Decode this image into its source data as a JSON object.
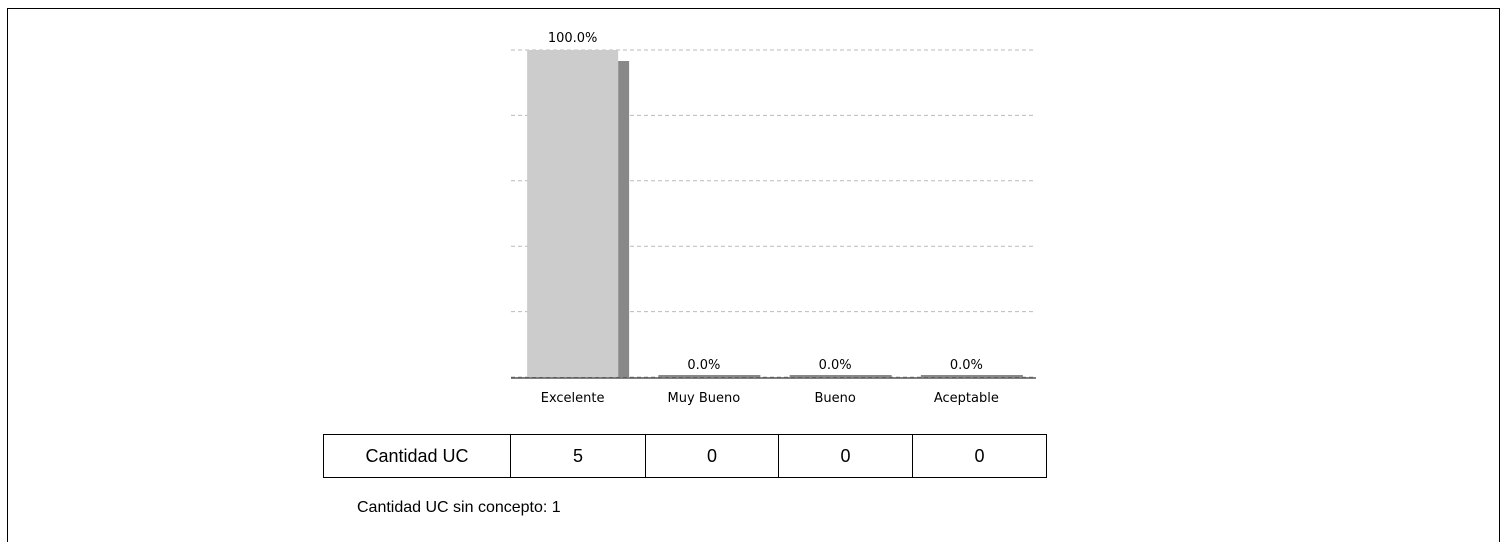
{
  "chart_data": {
    "type": "bar",
    "categories": [
      "Excelente",
      "Muy Bueno",
      "Bueno",
      "Aceptable"
    ],
    "values": [
      100.0,
      0.0,
      0.0,
      0.0
    ],
    "data_labels": [
      "100.0%",
      "0.0%",
      "0.0%",
      "0.0%"
    ],
    "ylim": [
      0,
      100
    ],
    "grid": true,
    "colors": {
      "bar": "#cccccc",
      "bar_shadow": "#888888",
      "grid": "#bbbbbb"
    },
    "title": "",
    "xlabel": "",
    "ylabel": ""
  },
  "table": {
    "row_label": "Cantidad UC",
    "values": [
      "5",
      "0",
      "0",
      "0"
    ]
  },
  "footnote": "Cantidad UC sin concepto: 1"
}
